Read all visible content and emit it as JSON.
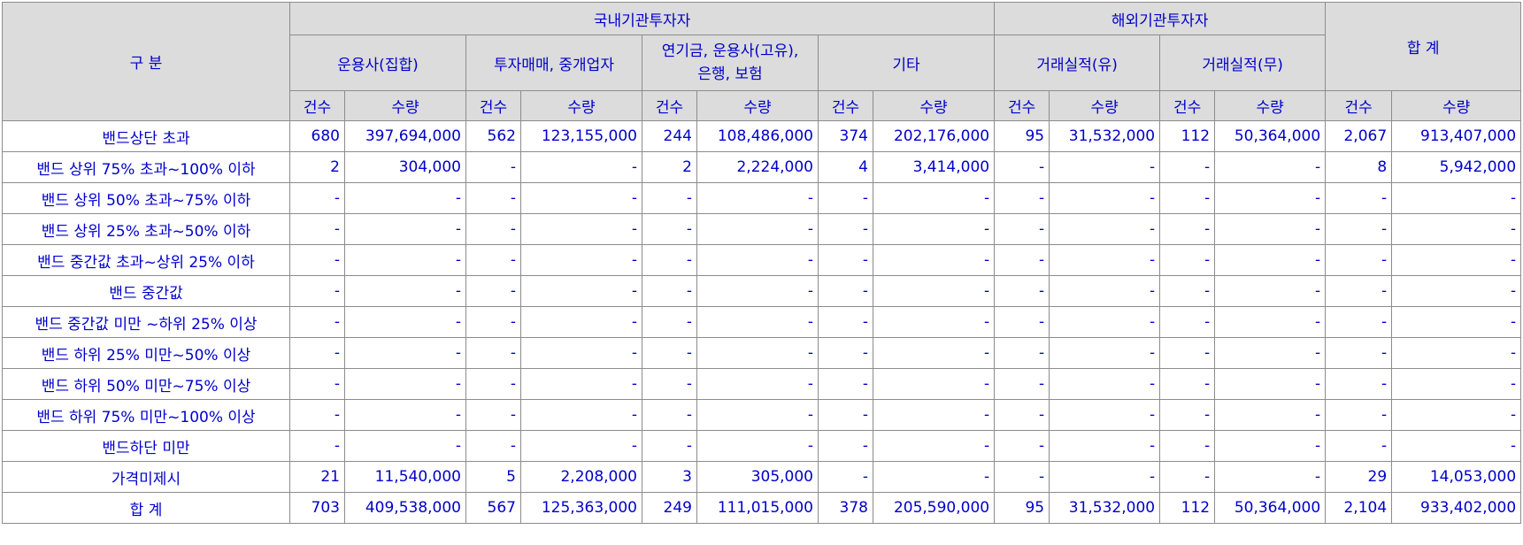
{
  "header": {
    "category": "구 분",
    "domestic": "국내기관투자자",
    "foreign": "해외기관투자자",
    "total": "합 계",
    "groups": [
      "운용사(집합)",
      "투자매매, 중개업자",
      "연기금, 운용사(고유),\n은행, 보험",
      "기타",
      "거래실적(유)",
      "거래실적(무)"
    ],
    "count": "건수",
    "quantity": "수량"
  },
  "rows": [
    {
      "label": "밴드상단 초과",
      "cells": [
        "680",
        "397,694,000",
        "562",
        "123,155,000",
        "244",
        "108,486,000",
        "374",
        "202,176,000",
        "95",
        "31,532,000",
        "112",
        "50,364,000",
        "2,067",
        "913,407,000"
      ]
    },
    {
      "label": "밴드 상위 75% 초과~100% 이하",
      "cells": [
        "2",
        "304,000",
        "-",
        "-",
        "2",
        "2,224,000",
        "4",
        "3,414,000",
        "-",
        "-",
        "-",
        "-",
        "8",
        "5,942,000"
      ]
    },
    {
      "label": "밴드 상위 50% 초과~75% 이하",
      "cells": [
        "-",
        "-",
        "-",
        "-",
        "-",
        "-",
        "-",
        "-",
        "-",
        "-",
        "-",
        "-",
        "-",
        "-"
      ]
    },
    {
      "label": "밴드 상위 25% 초과~50% 이하",
      "cells": [
        "-",
        "-",
        "-",
        "-",
        "-",
        "-",
        "-",
        "-",
        "-",
        "-",
        "-",
        "-",
        "-",
        "-"
      ]
    },
    {
      "label": "밴드 중간값 초과~상위 25% 이하",
      "cells": [
        "-",
        "-",
        "-",
        "-",
        "-",
        "-",
        "-",
        "-",
        "-",
        "-",
        "-",
        "-",
        "-",
        "-"
      ]
    },
    {
      "label": "밴드 중간값",
      "cells": [
        "-",
        "-",
        "-",
        "-",
        "-",
        "-",
        "-",
        "-",
        "-",
        "-",
        "-",
        "-",
        "-",
        "-"
      ]
    },
    {
      "label": "밴드 중간값 미만 ~하위 25% 이상",
      "cells": [
        "-",
        "-",
        "-",
        "-",
        "-",
        "-",
        "-",
        "-",
        "-",
        "-",
        "-",
        "-",
        "-",
        "-"
      ]
    },
    {
      "label": "밴드 하위 25% 미만~50% 이상",
      "cells": [
        "-",
        "-",
        "-",
        "-",
        "-",
        "-",
        "-",
        "-",
        "-",
        "-",
        "-",
        "-",
        "-",
        "-"
      ]
    },
    {
      "label": "밴드 하위 50% 미만~75% 이상",
      "cells": [
        "-",
        "-",
        "-",
        "-",
        "-",
        "-",
        "-",
        "-",
        "-",
        "-",
        "-",
        "-",
        "-",
        "-"
      ]
    },
    {
      "label": "밴드 하위 75% 미만~100% 이상",
      "cells": [
        "-",
        "-",
        "-",
        "-",
        "-",
        "-",
        "-",
        "-",
        "-",
        "-",
        "-",
        "-",
        "-",
        "-"
      ]
    },
    {
      "label": "밴드하단 미만",
      "cells": [
        "-",
        "-",
        "-",
        "-",
        "-",
        "-",
        "-",
        "-",
        "-",
        "-",
        "-",
        "-",
        "-",
        "-"
      ]
    },
    {
      "label": "가격미제시",
      "cells": [
        "21",
        "11,540,000",
        "5",
        "2,208,000",
        "3",
        "305,000",
        "-",
        "-",
        "-",
        "-",
        "-",
        "-",
        "29",
        "14,053,000"
      ]
    },
    {
      "label": "합 계",
      "cells": [
        "703",
        "409,538,000",
        "567",
        "125,363,000",
        "249",
        "111,015,000",
        "378",
        "205,590,000",
        "95",
        "31,532,000",
        "112",
        "50,364,000",
        "2,104",
        "933,402,000"
      ]
    }
  ],
  "colors": {
    "text": "#0000cc",
    "header_bg": "#dcdcdc",
    "border": "#8c8c8c"
  }
}
